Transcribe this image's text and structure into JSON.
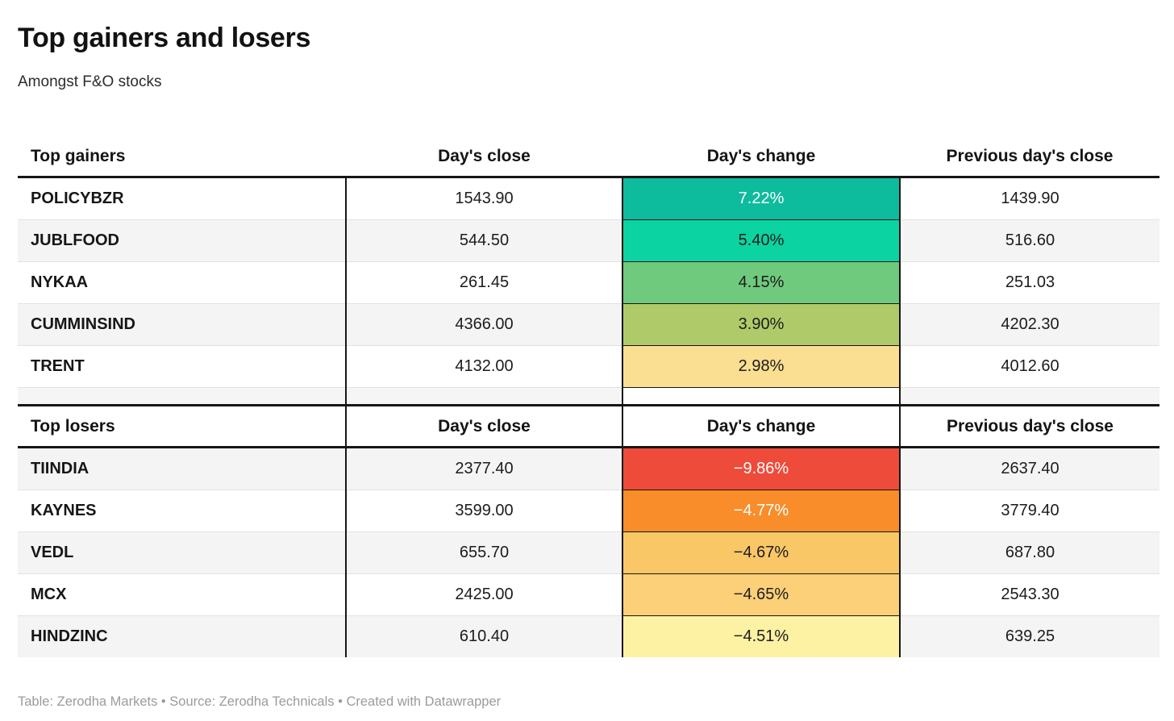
{
  "page": {
    "title": "Top gainers and losers",
    "subtitle": "Amongst F&O stocks",
    "footer": "Table: Zerodha Markets • Source: Zerodha Technicals • Created with Datawrapper"
  },
  "columns": {
    "gainers_label": "Top gainers",
    "losers_label": "Top losers",
    "close": "Day's close",
    "change": "Day's change",
    "prev_close": "Previous day's close"
  },
  "colors": {
    "header_rule": "#161616",
    "row_alt": "#f4f4f4",
    "row_separator": "#e2e2e2",
    "footer_text": "#9b9b9b"
  },
  "gainers": {
    "rows": [
      {
        "name": "POLICYBZR",
        "close": "1543.90",
        "change": "7.22%",
        "prev": "1439.90",
        "bg": "#0dbb9d",
        "fg": "#ffffff"
      },
      {
        "name": "JUBLFOOD",
        "close": "544.50",
        "change": "5.40%",
        "prev": "516.60",
        "bg": "#0bd3a1",
        "fg": "#1c1c1c"
      },
      {
        "name": "NYKAA",
        "close": "261.45",
        "change": "4.15%",
        "prev": "251.03",
        "bg": "#6fca7d",
        "fg": "#1c1c1c"
      },
      {
        "name": "CUMMINSIND",
        "close": "4366.00",
        "change": "3.90%",
        "prev": "4202.30",
        "bg": "#afcb69",
        "fg": "#1c1c1c"
      },
      {
        "name": "TRENT",
        "close": "4132.00",
        "change": "2.98%",
        "prev": "4012.60",
        "bg": "#fade92",
        "fg": "#1c1c1c"
      }
    ]
  },
  "losers": {
    "rows": [
      {
        "name": "TIINDIA",
        "close": "2377.40",
        "change": "−9.86%",
        "prev": "2637.40",
        "bg": "#ee4b3a",
        "fg": "#ffffff"
      },
      {
        "name": "KAYNES",
        "close": "3599.00",
        "change": "−4.77%",
        "prev": "3779.40",
        "bg": "#f88d2a",
        "fg": "#ffffff"
      },
      {
        "name": "VEDL",
        "close": "655.70",
        "change": "−4.67%",
        "prev": "687.80",
        "bg": "#fac767",
        "fg": "#1c1c1c"
      },
      {
        "name": "MCX",
        "close": "2425.00",
        "change": "−4.65%",
        "prev": "2543.30",
        "bg": "#fbd078",
        "fg": "#1c1c1c"
      },
      {
        "name": "HINDZINC",
        "close": "610.40",
        "change": "−4.51%",
        "prev": "639.25",
        "bg": "#fdf1a3",
        "fg": "#1c1c1c"
      }
    ]
  },
  "chart_data": {
    "type": "table",
    "title": "Top gainers and losers",
    "subtitle": "Amongst F&O stocks",
    "sections": [
      {
        "columns": [
          "Top gainers",
          "Day's close",
          "Day's change",
          "Previous day's close"
        ],
        "rows": [
          [
            "POLICYBZR",
            1543.9,
            "7.22%",
            1439.9
          ],
          [
            "JUBLFOOD",
            544.5,
            "5.40%",
            516.6
          ],
          [
            "NYKAA",
            261.45,
            "4.15%",
            251.03
          ],
          [
            "CUMMINSIND",
            4366.0,
            "3.90%",
            4202.3
          ],
          [
            "TRENT",
            4132.0,
            "2.98%",
            4012.6
          ]
        ]
      },
      {
        "columns": [
          "Top losers",
          "Day's close",
          "Day's change",
          "Previous day's close"
        ],
        "rows": [
          [
            "TIINDIA",
            2377.4,
            "-9.86%",
            2637.4
          ],
          [
            "KAYNES",
            3599.0,
            "-4.77%",
            3779.4
          ],
          [
            "VEDL",
            655.7,
            "-4.67%",
            687.8
          ],
          [
            "MCX",
            2425.0,
            "-4.65%",
            2543.3
          ],
          [
            "HINDZINC",
            610.4,
            "-4.51%",
            639.25
          ]
        ]
      }
    ]
  }
}
